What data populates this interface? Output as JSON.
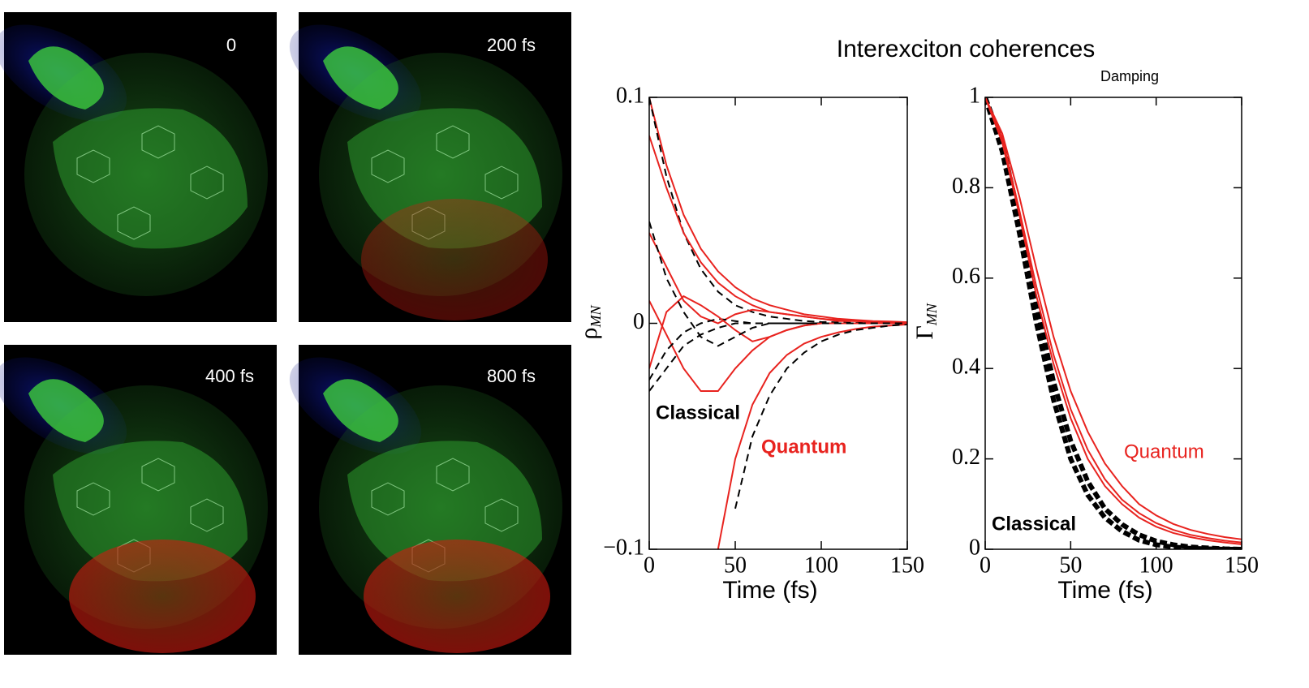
{
  "title": "Interexciton coherences",
  "images": [
    {
      "label": "0"
    },
    {
      "label": "200 fs"
    },
    {
      "label": "400 fs"
    },
    {
      "label": "800 fs"
    }
  ],
  "chart_data": [
    {
      "type": "line",
      "xlabel": "Time (fs)",
      "ylabel": "ρ",
      "ylabel_sub": "MN",
      "xlim": [
        0,
        150
      ],
      "xticks": [
        0,
        50,
        100,
        150
      ],
      "ylim": [
        -0.1,
        0.1
      ],
      "yticks": [
        {
          "value": -0.1,
          "label": "−0.1"
        },
        0,
        0.1
      ],
      "x": [
        0,
        10,
        20,
        30,
        40,
        50,
        60,
        70,
        80,
        90,
        100,
        110,
        120,
        130,
        140,
        150
      ],
      "series": [
        {
          "color": "#e8231f",
          "style": "solid",
          "values": [
            0.1,
            0.07,
            0.048,
            0.033,
            0.023,
            0.016,
            0.011,
            0.008,
            0.006,
            0.004,
            0.003,
            0.002,
            0.0015,
            0.001,
            0.0008,
            0.0005
          ]
        },
        {
          "color": "#000000",
          "style": "dashed",
          "values": [
            0.1,
            0.065,
            0.04,
            0.024,
            0.014,
            0.008,
            0.005,
            0.003,
            0.002,
            0.001,
            0.0006,
            0.0004,
            0.0002,
            0.0001,
            0,
            0
          ]
        },
        {
          "color": "#e8231f",
          "style": "solid",
          "values": [
            0.083,
            0.06,
            0.04,
            0.027,
            0.018,
            0.012,
            0.008,
            0.005,
            0.004,
            0.003,
            0.002,
            0.001,
            0.001,
            0.0005,
            0.0003,
            0.0002
          ]
        },
        {
          "color": "#e8231f",
          "style": "solid",
          "values": [
            null,
            null,
            null,
            null,
            -0.1,
            -0.06,
            -0.036,
            -0.022,
            -0.014,
            -0.009,
            -0.006,
            -0.004,
            -0.0025,
            -0.0015,
            -0.001,
            -0.0005
          ]
        },
        {
          "color": "#000000",
          "style": "dashed",
          "values": [
            null,
            null,
            null,
            null,
            null,
            -0.082,
            -0.05,
            -0.032,
            -0.02,
            -0.013,
            -0.008,
            -0.005,
            -0.003,
            -0.002,
            -0.001,
            -0.0005
          ]
        },
        {
          "color": "#e8231f",
          "style": "solid",
          "values": [
            0.01,
            -0.005,
            -0.02,
            -0.03,
            -0.03,
            -0.02,
            -0.012,
            -0.006,
            -0.003,
            -0.001,
            0,
            0,
            0,
            0,
            0,
            0
          ]
        },
        {
          "color": "#000000",
          "style": "dashed",
          "values": [
            -0.03,
            -0.02,
            -0.01,
            -0.005,
            -0.002,
            0,
            0,
            0,
            0,
            0,
            0,
            0,
            0,
            0,
            0,
            0
          ]
        },
        {
          "color": "#e8231f",
          "style": "solid",
          "values": [
            0.04,
            0.025,
            0.01,
            0.003,
            0,
            0.004,
            0.006,
            0.005,
            0.004,
            0.003,
            0.002,
            0.0015,
            0.001,
            0.0007,
            0.0004,
            0.0002
          ]
        },
        {
          "color": "#000000",
          "style": "dashed",
          "values": [
            -0.025,
            -0.012,
            -0.004,
            0,
            0.002,
            0.001,
            0,
            0,
            0,
            0,
            0,
            0,
            0,
            0,
            0,
            0
          ]
        },
        {
          "color": "#e8231f",
          "style": "solid",
          "values": [
            -0.02,
            0.005,
            0.012,
            0.008,
            0.003,
            -0.003,
            -0.008,
            -0.006,
            -0.003,
            -0.001,
            0,
            0,
            0,
            0,
            0,
            0
          ]
        },
        {
          "color": "#000000",
          "style": "dashed",
          "values": [
            0.045,
            0.02,
            0.005,
            -0.006,
            -0.01,
            -0.006,
            -0.002,
            0,
            0,
            0,
            0,
            0,
            0,
            0,
            0,
            0
          ]
        }
      ],
      "annotations": [
        {
          "text": "Classical",
          "color": "#000000"
        },
        {
          "text": "Quantum",
          "color": "#e8231f"
        }
      ]
    },
    {
      "type": "line",
      "title": "Damping",
      "xlabel": "Time (fs)",
      "ylabel": "Γ",
      "ylabel_sub": "MN",
      "xlim": [
        0,
        150
      ],
      "xticks": [
        0,
        50,
        100,
        150
      ],
      "ylim": [
        0,
        1
      ],
      "yticks": [
        0,
        0.2,
        0.4,
        0.6,
        0.8,
        1
      ],
      "x": [
        0,
        10,
        20,
        30,
        40,
        50,
        60,
        70,
        80,
        90,
        100,
        110,
        120,
        130,
        140,
        150
      ],
      "series": [
        {
          "color": "#000000",
          "style": "dashed",
          "width": 6,
          "values": [
            1,
            0.88,
            0.7,
            0.5,
            0.33,
            0.2,
            0.12,
            0.07,
            0.04,
            0.02,
            0.01,
            0.005,
            0.002,
            0.001,
            0,
            0
          ]
        },
        {
          "color": "#000000",
          "style": "dashed",
          "width": 6,
          "values": [
            1,
            0.9,
            0.73,
            0.54,
            0.37,
            0.24,
            0.15,
            0.09,
            0.055,
            0.032,
            0.018,
            0.01,
            0.005,
            0.003,
            0.001,
            0
          ]
        },
        {
          "color": "#e8231f",
          "style": "solid",
          "width": 2,
          "values": [
            1,
            0.92,
            0.78,
            0.62,
            0.47,
            0.35,
            0.26,
            0.19,
            0.14,
            0.1,
            0.075,
            0.056,
            0.043,
            0.034,
            0.027,
            0.022
          ]
        },
        {
          "color": "#e8231f",
          "style": "solid",
          "width": 2,
          "values": [
            1,
            0.91,
            0.75,
            0.58,
            0.43,
            0.31,
            0.22,
            0.155,
            0.11,
            0.08,
            0.058,
            0.043,
            0.032,
            0.025,
            0.019,
            0.015
          ]
        },
        {
          "color": "#e8231f",
          "style": "solid",
          "width": 2,
          "values": [
            1,
            0.9,
            0.74,
            0.56,
            0.41,
            0.29,
            0.2,
            0.14,
            0.1,
            0.07,
            0.05,
            0.036,
            0.027,
            0.02,
            0.015,
            0.011
          ]
        }
      ],
      "annotations": [
        {
          "text": "Quantum",
          "color": "#e8231f"
        },
        {
          "text": "Classical",
          "color": "#000000"
        }
      ]
    }
  ]
}
